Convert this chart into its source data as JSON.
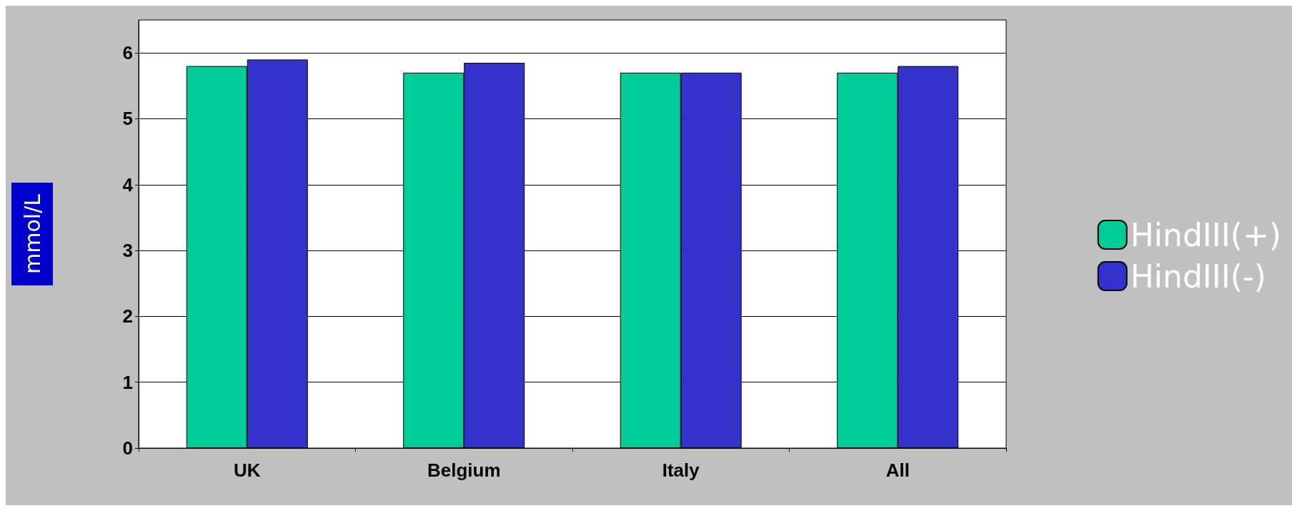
{
  "chart_data": {
    "type": "bar",
    "ylabel": "mmol/L",
    "categories": [
      "UK",
      "Belgium",
      "Italy",
      "All"
    ],
    "series": [
      {
        "name": "HindIII(+)",
        "color": "#00cc99",
        "values": [
          5.8,
          5.7,
          5.7,
          5.7
        ]
      },
      {
        "name": "HindIII(-)",
        "color": "#3333cc",
        "values": [
          5.9,
          5.85,
          5.7,
          5.8
        ]
      }
    ],
    "ylim": [
      0,
      6.5
    ],
    "yticks": [
      0,
      1,
      2,
      3,
      4,
      5,
      6
    ],
    "grid": "y",
    "legend": "right"
  }
}
